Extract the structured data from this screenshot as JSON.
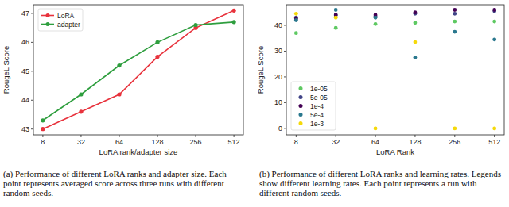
{
  "chart_data": [
    {
      "type": "line",
      "caption": "(a) Performance of different LoRA ranks and adapter size. Each point represents averaged score across three runs with different random seeds.",
      "x_label": "LoRA rank/adapter size",
      "y_label": "RougeL Score",
      "categories": [
        8,
        32,
        64,
        128,
        256,
        512
      ],
      "series": [
        {
          "name": "LoRA",
          "color": "#e8323c",
          "marker": "circle",
          "values": [
            43.0,
            43.6,
            44.2,
            45.5,
            46.5,
            47.1
          ]
        },
        {
          "name": "adapter",
          "color": "#2e9e3e",
          "marker": "circle",
          "values": [
            43.3,
            44.2,
            45.2,
            46.0,
            46.6,
            46.7
          ]
        }
      ],
      "ylim": [
        42.8,
        47.3
      ],
      "yticks": [
        43,
        44,
        45,
        46,
        47
      ],
      "legend": "upper left",
      "grid": false
    },
    {
      "type": "scatter",
      "caption": "(b) Performance of different LoRA ranks and learning rates. Legends show different learning rates. Each point represents a run with different random seeds.",
      "x_label": "LoRA Rank",
      "y_label": "RougeL Score",
      "categories": [
        8,
        32,
        64,
        128,
        256,
        512
      ],
      "series": [
        {
          "name": "1e-05",
          "color": "#5ec962",
          "marker": "circle",
          "values": [
            37,
            39,
            40.5,
            41,
            41.5,
            41.5
          ]
        },
        {
          "name": "5e-05",
          "color": "#414487",
          "marker": "circle",
          "values": [
            43,
            44,
            43.5,
            44.5,
            44.5,
            45.5
          ]
        },
        {
          "name": "1e-4",
          "color": "#440154",
          "marker": "circle",
          "values": [
            42.5,
            44,
            44,
            45,
            46,
            46
          ]
        },
        {
          "name": "5e-4",
          "color": "#2a788e",
          "marker": "circle",
          "values": [
            42,
            46,
            43,
            27.5,
            37.5,
            34.5
          ]
        },
        {
          "name": "1e-3",
          "color": "#f5d90a",
          "marker": "circle",
          "values": [
            44.5,
            43,
            0,
            33.5,
            0,
            0
          ]
        }
      ],
      "ylim": [
        -2.5,
        48
      ],
      "yticks": [
        0,
        10,
        20,
        30,
        40
      ],
      "legend": "lower left",
      "grid": false
    }
  ]
}
